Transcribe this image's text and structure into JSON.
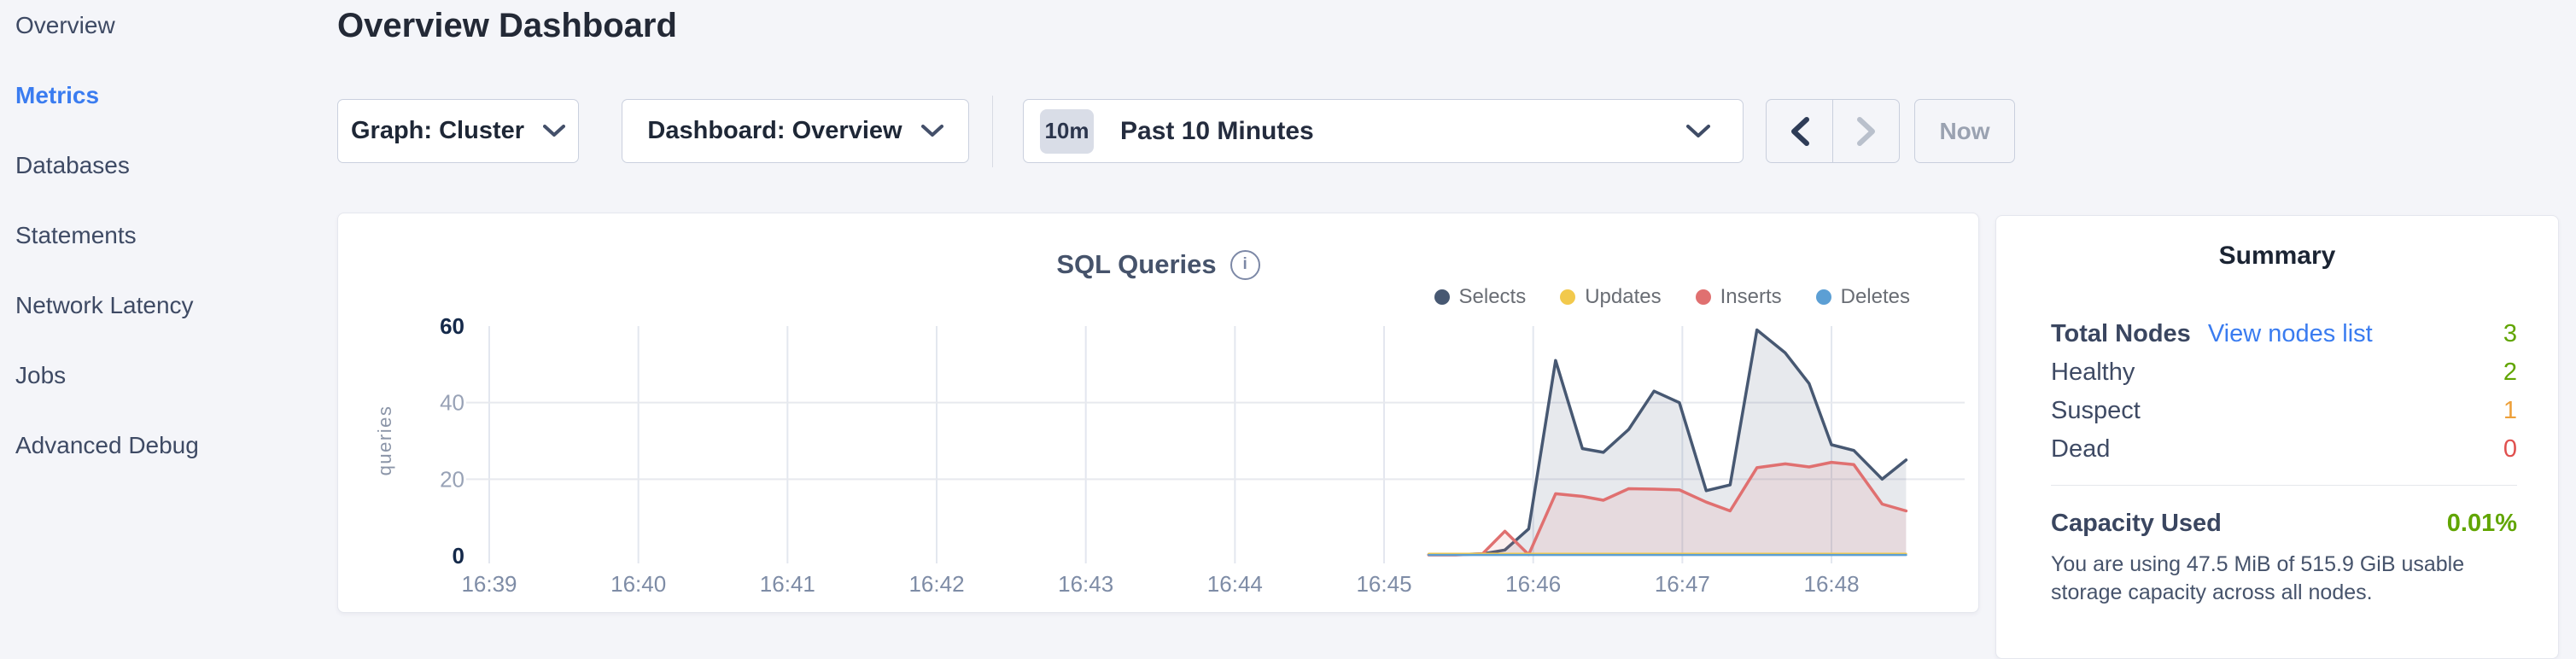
{
  "colors": {
    "page_bg": "#f4f5f9",
    "card_border": "#e5e7ee",
    "text_slate": "#3e4a64",
    "accent_blue": "#3a7cf0",
    "green": "#61a500",
    "orange": "#eda03a",
    "red": "#e0504e",
    "disabled": "#9aa2b1",
    "badge_bg": "#d9dde7",
    "divider": "#d8dbe4",
    "grid_line": "#e3e7ef",
    "axis_bold": "#14294a",
    "axis_minor": "#98a2b6",
    "tick_label": "#7e8ca6"
  },
  "sidebar": {
    "items": [
      {
        "label": "Overview",
        "active": false
      },
      {
        "label": "Metrics",
        "active": true
      },
      {
        "label": "Databases",
        "active": false
      },
      {
        "label": "Statements",
        "active": false
      },
      {
        "label": "Network Latency",
        "active": false
      },
      {
        "label": "Jobs",
        "active": false
      },
      {
        "label": "Advanced Debug",
        "active": false
      }
    ]
  },
  "header": {
    "title": "Overview Dashboard"
  },
  "controls": {
    "graph_dropdown": {
      "label": "Graph: Cluster"
    },
    "dashboard_dropdown": {
      "label": "Dashboard: Overview"
    },
    "time_selector": {
      "badge": "10m",
      "label": "Past 10 Minutes"
    },
    "now_label": "Now"
  },
  "chart_data": {
    "type": "area",
    "title": "SQL Queries",
    "ylabel": "queries",
    "ylim": [
      0,
      60
    ],
    "y_ticks": [
      0,
      20,
      40,
      60
    ],
    "y_ticks_bold": [
      0,
      60
    ],
    "x_tick_labels": [
      "16:39",
      "16:40",
      "16:41",
      "16:42",
      "16:43",
      "16:44",
      "16:45",
      "16:46",
      "16:47",
      "16:48"
    ],
    "x_unit": "minutes after 16:39",
    "legend_position": "top-right",
    "grid": true,
    "series": [
      {
        "name": "Selects",
        "color": "#475872",
        "fill": "rgba(71,88,114,0.13)",
        "points": [
          [
            6.3,
            0.3
          ],
          [
            6.48,
            0.3
          ],
          [
            6.66,
            0.5
          ],
          [
            6.81,
            1.5
          ],
          [
            6.97,
            7
          ],
          [
            7.15,
            51
          ],
          [
            7.33,
            28
          ],
          [
            7.47,
            27
          ],
          [
            7.64,
            33
          ],
          [
            7.81,
            43
          ],
          [
            7.98,
            40
          ],
          [
            8.16,
            17
          ],
          [
            8.32,
            18.5
          ],
          [
            8.5,
            59
          ],
          [
            8.69,
            53
          ],
          [
            8.85,
            45
          ],
          [
            9.0,
            29
          ],
          [
            9.15,
            27.5
          ],
          [
            9.34,
            20
          ],
          [
            9.5,
            25
          ]
        ]
      },
      {
        "name": "Updates",
        "color": "#f2c94c",
        "fill": null,
        "points": [
          [
            6.3,
            0.5
          ],
          [
            9.5,
            0.5
          ]
        ]
      },
      {
        "name": "Inserts",
        "color": "#e07070",
        "fill": "rgba(224,112,112,0.12)",
        "points": [
          [
            6.3,
            0.2
          ],
          [
            6.48,
            0.2
          ],
          [
            6.66,
            0.5
          ],
          [
            6.81,
            6.4
          ],
          [
            6.97,
            0.3
          ],
          [
            7.15,
            16.2
          ],
          [
            7.33,
            15.5
          ],
          [
            7.47,
            14.5
          ],
          [
            7.64,
            17.5
          ],
          [
            7.81,
            17.4
          ],
          [
            7.98,
            17.2
          ],
          [
            8.16,
            14
          ],
          [
            8.32,
            11.7
          ],
          [
            8.5,
            23
          ],
          [
            8.69,
            24
          ],
          [
            8.85,
            23.2
          ],
          [
            9.0,
            24.4
          ],
          [
            9.15,
            23.8
          ],
          [
            9.34,
            13.5
          ],
          [
            9.5,
            11.7
          ]
        ]
      },
      {
        "name": "Deletes",
        "color": "#5c9fd4",
        "fill": null,
        "points": [
          [
            6.3,
            0.2
          ],
          [
            9.5,
            0.2
          ]
        ]
      }
    ]
  },
  "summary": {
    "title": "Summary",
    "total_nodes": {
      "label": "Total Nodes",
      "link": "View nodes list",
      "value": "3"
    },
    "rows": [
      {
        "label": "Healthy",
        "value": "2",
        "status": "green"
      },
      {
        "label": "Suspect",
        "value": "1",
        "status": "orange"
      },
      {
        "label": "Dead",
        "value": "0",
        "status": "red"
      }
    ],
    "capacity": {
      "label": "Capacity Used",
      "value": "0.01%"
    },
    "capacity_note": "You are using 47.5 MiB of 515.9 GiB usable storage capacity across all nodes."
  }
}
